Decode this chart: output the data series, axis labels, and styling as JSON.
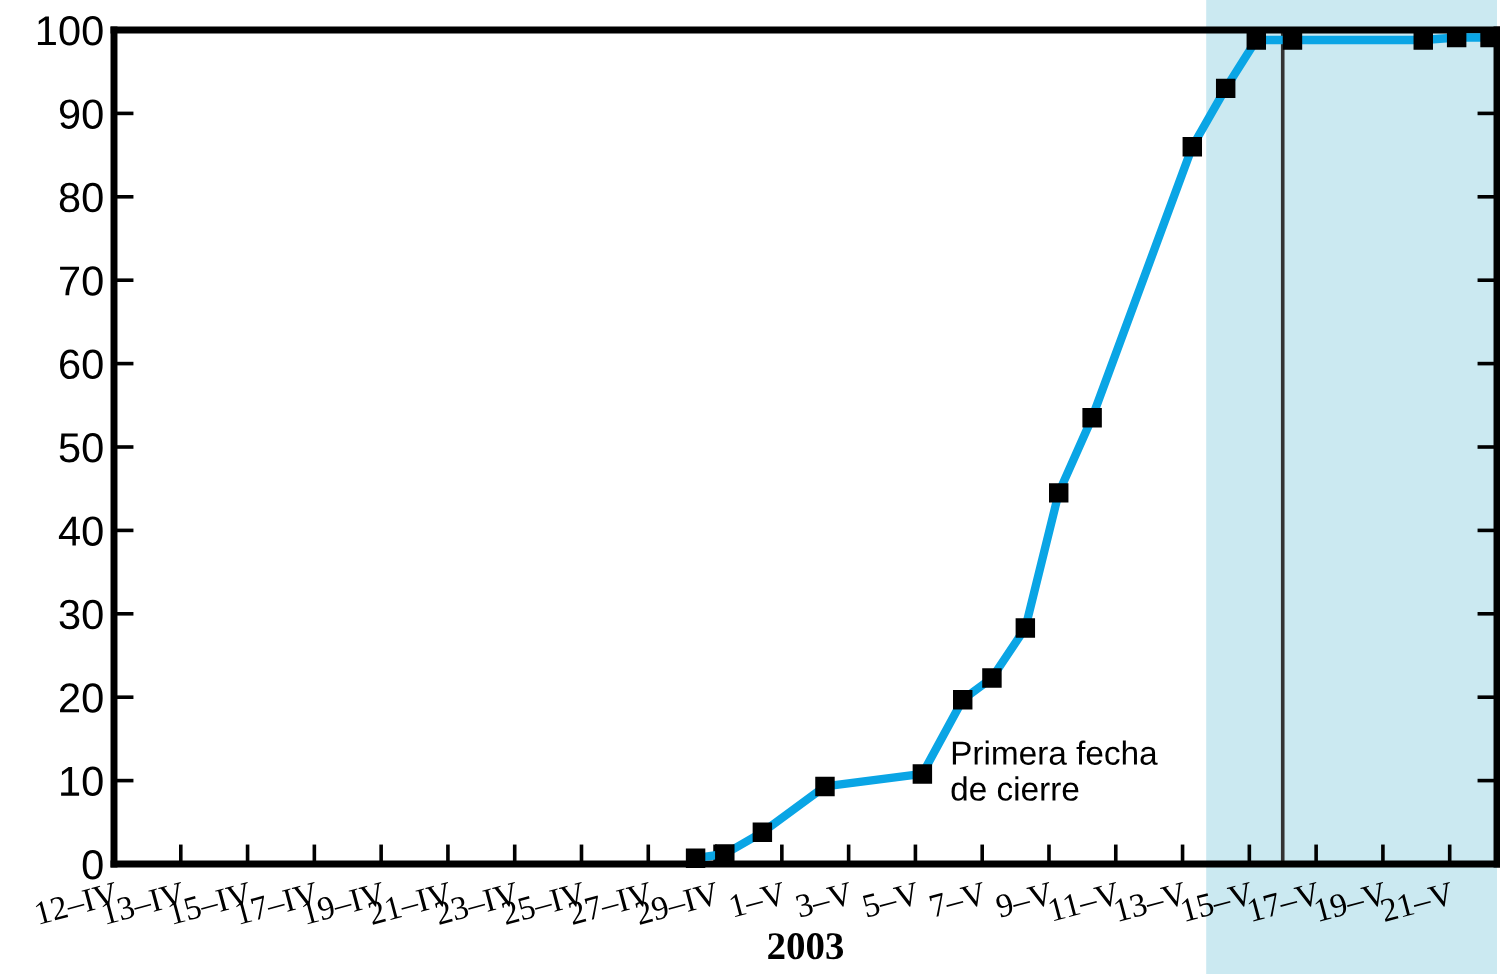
{
  "chart_data": {
    "type": "line",
    "xlabel": "2003",
    "x": [
      "2003-04-28T10:00",
      "2003-04-29T07:00",
      "2003-04-30T10:00",
      "2003-05-02T07:00",
      "2003-05-05T05:00",
      "2003-05-06T10:00",
      "2003-05-07T07:00",
      "2003-05-08T07:00",
      "2003-05-09T07:00",
      "2003-05-10T07:00",
      "2003-05-13T07:00",
      "2003-05-14T07:00",
      "2003-05-15T05:00",
      "2003-05-16T07:00",
      "2003-05-20T05:00",
      "2003-05-21T05:00",
      "2003-05-22T05:00"
    ],
    "series": [
      {
        "color": "#0aa5e5",
        "values": [
          0.7,
          1.2,
          3.8,
          9.3,
          10.8,
          19.7,
          22.3,
          28.3,
          44.5,
          53.5,
          86,
          93,
          98.8,
          98.8,
          98.8,
          99.1,
          99.1
        ]
      }
    ],
    "marker": "square",
    "line_style": "solid",
    "xlim": [
      "2003-04-11",
      "2003-05-22T10:00"
    ],
    "xticks": [
      {
        "value": "2003-04-11",
        "label": "12–IV"
      },
      {
        "value": "2003-04-13",
        "label": "13–IV"
      },
      {
        "value": "2003-04-15",
        "label": "15–IV"
      },
      {
        "value": "2003-04-17",
        "label": "17–IV"
      },
      {
        "value": "2003-04-19",
        "label": "19–IV"
      },
      {
        "value": "2003-04-21",
        "label": "21–IV"
      },
      {
        "value": "2003-04-23",
        "label": "23–IV"
      },
      {
        "value": "2003-04-25",
        "label": "25–IV"
      },
      {
        "value": "2003-04-27",
        "label": "27–IV"
      },
      {
        "value": "2003-04-29",
        "label": "29–IV"
      },
      {
        "value": "2003-05-01",
        "label": "1–V"
      },
      {
        "value": "2003-05-03",
        "label": "3–V"
      },
      {
        "value": "2003-05-05",
        "label": "5–V"
      },
      {
        "value": "2003-05-07",
        "label": "7–V"
      },
      {
        "value": "2003-05-09",
        "label": "9–V"
      },
      {
        "value": "2003-05-11",
        "label": "11–V"
      },
      {
        "value": "2003-05-13",
        "label": "13–V"
      },
      {
        "value": "2003-05-15",
        "label": "15–V"
      },
      {
        "value": "2003-05-17",
        "label": "17–V"
      },
      {
        "value": "2003-05-19",
        "label": "19–V"
      },
      {
        "value": "2003-05-21",
        "label": "21–V"
      }
    ],
    "ylim": [
      0,
      100
    ],
    "yticks": [
      0,
      10,
      20,
      30,
      40,
      50,
      60,
      70,
      80,
      90,
      100
    ],
    "ref_lines": [
      {
        "axis": "x",
        "value": "2003-05-16",
        "color": "#333333",
        "line_style": "solid"
      }
    ],
    "bands": [
      {
        "axis": "x",
        "from": "2003-05-13T17:00",
        "to": "2003-05-22T10:00",
        "color": "#cbe9f1"
      }
    ],
    "annotations": [
      {
        "text": "Primera fecha\nde cierre",
        "x": "2003-05-05T05:00",
        "y": 10.8
      }
    ],
    "grid": false,
    "legend": false
  }
}
